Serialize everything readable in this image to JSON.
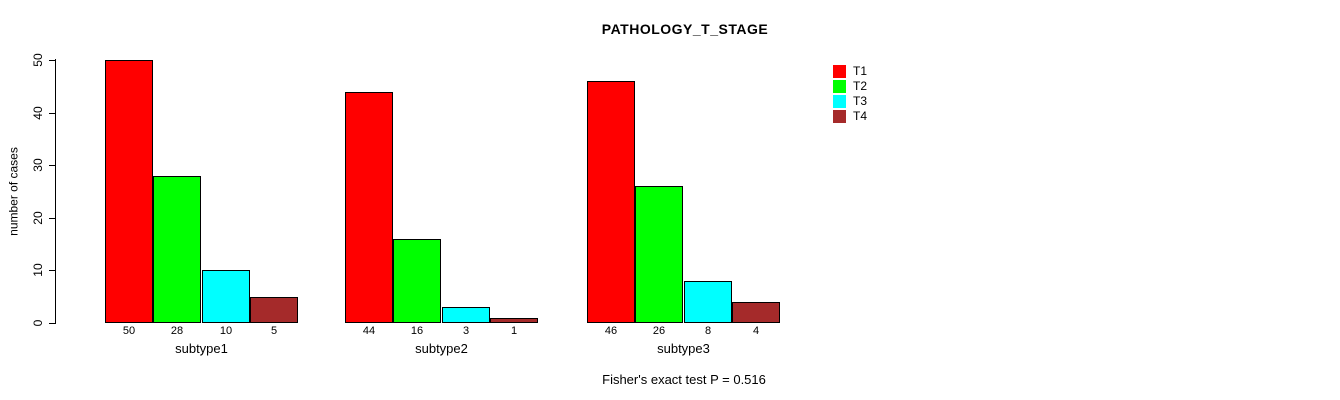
{
  "title": "PATHOLOGY_T_STAGE",
  "ylabel": "number of cases",
  "footnote": "Fisher's exact test P = 0.516",
  "chart_data": {
    "type": "bar",
    "title": "PATHOLOGY_T_STAGE",
    "ylabel": "number of cases",
    "xlabel": "",
    "ylim": [
      0,
      50
    ],
    "yticks": [
      0,
      10,
      20,
      30,
      40,
      50
    ],
    "grid": false,
    "legend_position": "right",
    "categories": [
      "subtype1",
      "subtype2",
      "subtype3"
    ],
    "series": [
      {
        "name": "T1",
        "color": "#ff0000",
        "values": [
          50,
          44,
          46
        ]
      },
      {
        "name": "T2",
        "color": "#00ff00",
        "values": [
          28,
          16,
          26
        ]
      },
      {
        "name": "T3",
        "color": "#00ffff",
        "values": [
          10,
          3,
          8
        ]
      },
      {
        "name": "T4",
        "color": "#a52a2a",
        "values": [
          5,
          1,
          4
        ]
      }
    ],
    "bar_value_labels": {
      "subtype1": [
        50,
        28,
        10,
        5
      ],
      "subtype2": [
        44,
        16,
        3,
        1
      ],
      "subtype3": [
        46,
        26,
        8,
        4
      ]
    },
    "annotation": "Fisher's exact test P = 0.516",
    "bar_border_color": "#000000",
    "background_color": "#ffffff"
  },
  "layout_hints": {
    "legend_entries": [
      "T1",
      "T2",
      "T3",
      "T4"
    ]
  }
}
